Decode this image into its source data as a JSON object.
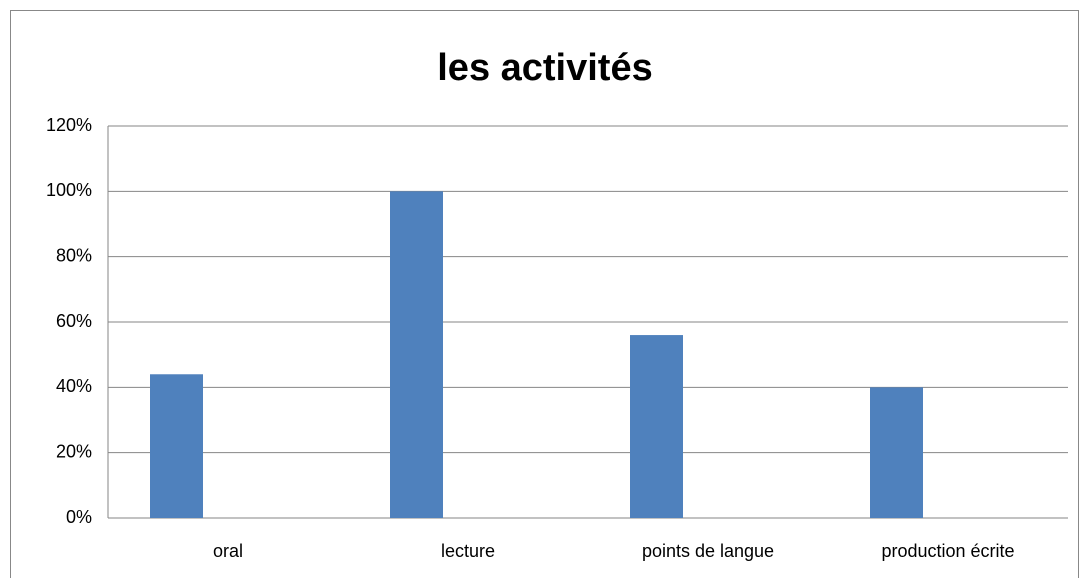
{
  "chart_data": {
    "type": "bar",
    "title": "les activités",
    "categories": [
      "oral",
      "lecture",
      "points de langue",
      "production écrite"
    ],
    "values": [
      44,
      100,
      56,
      40
    ],
    "color": "#4f81bd",
    "ylim": [
      0,
      120
    ],
    "yticks": [
      {
        "value": 0,
        "label": "0%"
      },
      {
        "value": 20,
        "label": "20%"
      },
      {
        "value": 40,
        "label": "40%"
      },
      {
        "value": 60,
        "label": "60%"
      },
      {
        "value": 80,
        "label": "80%"
      },
      {
        "value": 100,
        "label": "100%"
      },
      {
        "value": 120,
        "label": "120%"
      }
    ],
    "grid": true
  }
}
